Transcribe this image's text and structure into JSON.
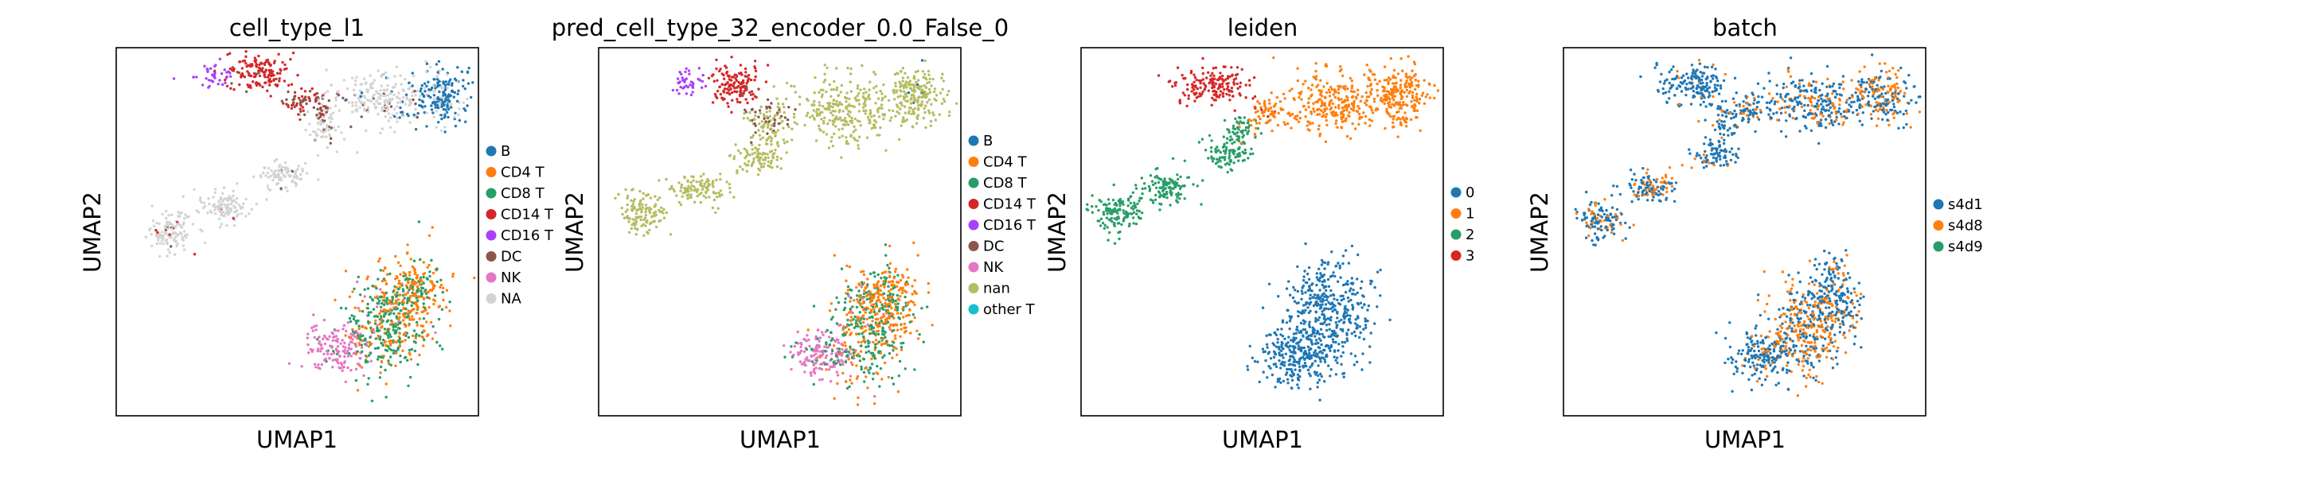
{
  "chart_data": [
    {
      "type": "scatter",
      "title": "cell_type_l1",
      "xlabel": "UMAP1",
      "ylabel": "UMAP2",
      "legend_position": "right",
      "legend": [
        {
          "label": "B",
          "color": "#1f77b4"
        },
        {
          "label": "CD4 T",
          "color": "#ff7f0e"
        },
        {
          "label": "CD8 T",
          "color": "#279e68"
        },
        {
          "label": "CD14 T",
          "color": "#d62728"
        },
        {
          "label": "CD16 T",
          "color": "#aa40fc"
        },
        {
          "label": "DC",
          "color": "#8c564b"
        },
        {
          "label": "NK",
          "color": "#e377c2"
        },
        {
          "label": "NA",
          "color": "#d3d3d3"
        }
      ],
      "regions": [
        {
          "cx": 0.15,
          "cy": 0.5,
          "rx": 0.06,
          "ry": 0.05,
          "n": 120,
          "weights": {
            "NA": 0.92,
            "CD14 T": 0.05,
            "DC": 0.03
          }
        },
        {
          "cx": 0.3,
          "cy": 0.57,
          "rx": 0.06,
          "ry": 0.04,
          "n": 110,
          "weights": {
            "NA": 0.95,
            "CD14 T": 0.03,
            "DC": 0.02
          }
        },
        {
          "cx": 0.45,
          "cy": 0.65,
          "rx": 0.06,
          "ry": 0.04,
          "n": 90,
          "weights": {
            "NA": 0.95,
            "DC": 0.05
          }
        },
        {
          "cx": 0.57,
          "cy": 0.79,
          "rx": 0.04,
          "ry": 0.05,
          "n": 70,
          "weights": {
            "NA": 0.75,
            "DC": 0.25
          }
        },
        {
          "cx": 0.27,
          "cy": 0.93,
          "rx": 0.05,
          "ry": 0.03,
          "n": 40,
          "weights": {
            "CD16 T": 1.0
          }
        },
        {
          "cx": 0.4,
          "cy": 0.93,
          "rx": 0.08,
          "ry": 0.05,
          "n": 150,
          "weights": {
            "CD14 T": 0.95,
            "DC": 0.05
          }
        },
        {
          "cx": 0.52,
          "cy": 0.85,
          "rx": 0.06,
          "ry": 0.03,
          "n": 70,
          "weights": {
            "DC": 0.75,
            "CD14 T": 0.25
          }
        },
        {
          "cx": 0.72,
          "cy": 0.86,
          "rx": 0.12,
          "ry": 0.07,
          "n": 220,
          "weights": {
            "NA": 0.85,
            "DC": 0.1,
            "B": 0.05
          }
        },
        {
          "cx": 0.9,
          "cy": 0.87,
          "rx": 0.07,
          "ry": 0.07,
          "n": 200,
          "weights": {
            "B": 0.75,
            "NA": 0.25
          }
        },
        {
          "cx": 0.61,
          "cy": 0.18,
          "rx": 0.08,
          "ry": 0.06,
          "n": 160,
          "weights": {
            "NK": 0.95,
            "CD8 T": 0.05
          }
        },
        {
          "cx": 0.75,
          "cy": 0.24,
          "rx": 0.1,
          "ry": 0.13,
          "n": 360,
          "weights": {
            "CD8 T": 0.6,
            "CD4 T": 0.35,
            "NK": 0.05
          }
        },
        {
          "cx": 0.82,
          "cy": 0.33,
          "rx": 0.08,
          "ry": 0.1,
          "n": 260,
          "weights": {
            "CD4 T": 0.65,
            "CD8 T": 0.35
          }
        }
      ]
    },
    {
      "type": "scatter",
      "title": "pred_cell_type_32_encoder_0.0_False_0",
      "xlabel": "UMAP1",
      "ylabel": "UMAP2",
      "legend_position": "right",
      "legend": [
        {
          "label": "B",
          "color": "#1f77b4"
        },
        {
          "label": "CD4 T",
          "color": "#ff7f0e"
        },
        {
          "label": "CD8 T",
          "color": "#279e68"
        },
        {
          "label": "CD14 T",
          "color": "#d62728"
        },
        {
          "label": "CD16 T",
          "color": "#aa40fc"
        },
        {
          "label": "DC",
          "color": "#8c564b"
        },
        {
          "label": "NK",
          "color": "#e377c2"
        },
        {
          "label": "nan",
          "color": "#b5bd61"
        },
        {
          "label": "other T",
          "color": "#17becf"
        }
      ],
      "regions": [
        {
          "cx": 0.12,
          "cy": 0.55,
          "rx": 0.06,
          "ry": 0.05,
          "n": 120,
          "weights": {
            "nan": 1.0
          }
        },
        {
          "cx": 0.28,
          "cy": 0.62,
          "rx": 0.07,
          "ry": 0.04,
          "n": 110,
          "weights": {
            "nan": 1.0
          }
        },
        {
          "cx": 0.44,
          "cy": 0.7,
          "rx": 0.06,
          "ry": 0.04,
          "n": 90,
          "weights": {
            "nan": 1.0
          }
        },
        {
          "cx": 0.47,
          "cy": 0.78,
          "rx": 0.05,
          "ry": 0.04,
          "n": 60,
          "weights": {
            "nan": 0.85,
            "DC": 0.15
          }
        },
        {
          "cx": 0.25,
          "cy": 0.9,
          "rx": 0.04,
          "ry": 0.03,
          "n": 40,
          "weights": {
            "CD16 T": 1.0
          }
        },
        {
          "cx": 0.38,
          "cy": 0.9,
          "rx": 0.07,
          "ry": 0.05,
          "n": 140,
          "weights": {
            "CD14 T": 0.95,
            "DC": 0.05
          }
        },
        {
          "cx": 0.46,
          "cy": 0.82,
          "rx": 0.05,
          "ry": 0.03,
          "n": 50,
          "weights": {
            "DC": 0.6,
            "nan": 0.4
          }
        },
        {
          "cx": 0.68,
          "cy": 0.83,
          "rx": 0.14,
          "ry": 0.08,
          "n": 280,
          "weights": {
            "nan": 1.0
          }
        },
        {
          "cx": 0.88,
          "cy": 0.87,
          "rx": 0.07,
          "ry": 0.07,
          "n": 200,
          "weights": {
            "nan": 0.97,
            "B": 0.03
          }
        },
        {
          "cx": 0.61,
          "cy": 0.17,
          "rx": 0.08,
          "ry": 0.06,
          "n": 160,
          "weights": {
            "NK": 0.9,
            "CD8 T": 0.1
          }
        },
        {
          "cx": 0.74,
          "cy": 0.22,
          "rx": 0.1,
          "ry": 0.13,
          "n": 360,
          "weights": {
            "CD8 T": 0.55,
            "CD4 T": 0.4,
            "NK": 0.05
          }
        },
        {
          "cx": 0.8,
          "cy": 0.32,
          "rx": 0.08,
          "ry": 0.1,
          "n": 260,
          "weights": {
            "CD4 T": 0.7,
            "CD8 T": 0.3
          }
        }
      ]
    },
    {
      "type": "scatter",
      "title": "leiden",
      "xlabel": "UMAP1",
      "ylabel": "UMAP2",
      "legend_position": "right",
      "legend": [
        {
          "label": "0",
          "color": "#1f77b4"
        },
        {
          "label": "1",
          "color": "#ff7f0e"
        },
        {
          "label": "2",
          "color": "#279e68"
        },
        {
          "label": "3",
          "color": "#d62728"
        }
      ],
      "regions": [
        {
          "cx": 0.1,
          "cy": 0.55,
          "rx": 0.06,
          "ry": 0.05,
          "n": 130,
          "weights": {
            "2": 1.0
          }
        },
        {
          "cx": 0.24,
          "cy": 0.62,
          "rx": 0.07,
          "ry": 0.04,
          "n": 120,
          "weights": {
            "2": 1.0
          }
        },
        {
          "cx": 0.4,
          "cy": 0.71,
          "rx": 0.06,
          "ry": 0.04,
          "n": 90,
          "weights": {
            "2": 1.0
          }
        },
        {
          "cx": 0.45,
          "cy": 0.78,
          "rx": 0.04,
          "ry": 0.04,
          "n": 60,
          "weights": {
            "2": 0.85,
            "1": 0.15
          }
        },
        {
          "cx": 0.36,
          "cy": 0.9,
          "rx": 0.09,
          "ry": 0.05,
          "n": 170,
          "weights": {
            "3": 1.0
          }
        },
        {
          "cx": 0.52,
          "cy": 0.82,
          "rx": 0.05,
          "ry": 0.03,
          "n": 60,
          "weights": {
            "1": 0.85,
            "3": 0.15
          }
        },
        {
          "cx": 0.7,
          "cy": 0.85,
          "rx": 0.13,
          "ry": 0.07,
          "n": 280,
          "weights": {
            "1": 1.0
          }
        },
        {
          "cx": 0.88,
          "cy": 0.87,
          "rx": 0.07,
          "ry": 0.07,
          "n": 210,
          "weights": {
            "1": 1.0
          }
        },
        {
          "cx": 0.6,
          "cy": 0.16,
          "rx": 0.1,
          "ry": 0.07,
          "n": 240,
          "weights": {
            "0": 1.0
          }
        },
        {
          "cx": 0.68,
          "cy": 0.28,
          "rx": 0.11,
          "ry": 0.13,
          "n": 420,
          "weights": {
            "0": 1.0
          }
        }
      ]
    },
    {
      "type": "scatter",
      "title": "batch",
      "xlabel": "UMAP1",
      "ylabel": "UMAP2",
      "legend_position": "right",
      "legend": [
        {
          "label": "s4d1",
          "color": "#1f77b4"
        },
        {
          "label": "s4d8",
          "color": "#ff7f0e"
        },
        {
          "label": "s4d9",
          "color": "#279e68"
        }
      ],
      "regions": [
        {
          "cx": 0.1,
          "cy": 0.53,
          "rx": 0.06,
          "ry": 0.05,
          "n": 130,
          "weights": {
            "s4d1": 0.65,
            "s4d8": 0.35
          }
        },
        {
          "cx": 0.24,
          "cy": 0.62,
          "rx": 0.07,
          "ry": 0.04,
          "n": 120,
          "weights": {
            "s4d1": 0.7,
            "s4d8": 0.3
          }
        },
        {
          "cx": 0.42,
          "cy": 0.71,
          "rx": 0.06,
          "ry": 0.04,
          "n": 90,
          "weights": {
            "s4d1": 0.85,
            "s4d8": 0.15
          }
        },
        {
          "cx": 0.45,
          "cy": 0.8,
          "rx": 0.05,
          "ry": 0.04,
          "n": 60,
          "weights": {
            "s4d1": 0.75,
            "s4d8": 0.25
          }
        },
        {
          "cx": 0.36,
          "cy": 0.9,
          "rx": 0.09,
          "ry": 0.05,
          "n": 170,
          "weights": {
            "s4d1": 0.95,
            "s4d8": 0.05
          }
        },
        {
          "cx": 0.52,
          "cy": 0.83,
          "rx": 0.05,
          "ry": 0.03,
          "n": 60,
          "weights": {
            "s4d1": 0.7,
            "s4d8": 0.3
          }
        },
        {
          "cx": 0.7,
          "cy": 0.85,
          "rx": 0.13,
          "ry": 0.07,
          "n": 280,
          "weights": {
            "s4d1": 0.7,
            "s4d8": 0.3
          }
        },
        {
          "cx": 0.88,
          "cy": 0.87,
          "rx": 0.07,
          "ry": 0.07,
          "n": 210,
          "weights": {
            "s4d1": 0.55,
            "s4d8": 0.45
          }
        },
        {
          "cx": 0.55,
          "cy": 0.16,
          "rx": 0.08,
          "ry": 0.06,
          "n": 180,
          "weights": {
            "s4d1": 0.85,
            "s4d8": 0.15
          }
        },
        {
          "cx": 0.67,
          "cy": 0.24,
          "rx": 0.1,
          "ry": 0.12,
          "n": 380,
          "weights": {
            "s4d8": 0.6,
            "s4d1": 0.4
          }
        },
        {
          "cx": 0.75,
          "cy": 0.33,
          "rx": 0.07,
          "ry": 0.09,
          "n": 200,
          "weights": {
            "s4d1": 0.75,
            "s4d8": 0.25
          }
        }
      ]
    }
  ]
}
